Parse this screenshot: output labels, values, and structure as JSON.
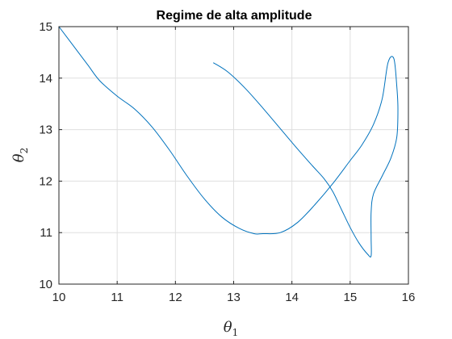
{
  "chart_data": {
    "type": "line",
    "title": "Regime de alta amplitude",
    "xlabel": {
      "base": "θ",
      "sub": "1"
    },
    "ylabel": {
      "base": "θ",
      "sub": "2"
    },
    "xlim": [
      10,
      16
    ],
    "ylim": [
      10,
      15
    ],
    "xticks": [
      10,
      11,
      12,
      13,
      14,
      15,
      16
    ],
    "yticks": [
      10,
      11,
      12,
      13,
      14,
      15
    ],
    "grid": true,
    "line_color": "#0072BD",
    "series": [
      {
        "x": [
          12.65,
          12.9,
          13.2,
          13.5,
          13.8,
          14.1,
          14.35,
          14.55,
          14.7,
          14.85,
          15.0,
          15.15,
          15.3,
          15.36,
          15.36,
          15.36,
          15.4,
          15.55,
          15.7,
          15.8,
          15.82,
          15.8,
          15.75,
          15.65,
          15.55,
          15.4,
          15.2,
          15.0,
          14.7,
          14.4,
          14.1,
          13.8,
          13.5,
          13.35,
          13.1,
          12.8,
          12.5,
          12.2,
          11.9,
          11.6,
          11.3,
          11.0,
          10.7,
          10.5,
          10.3,
          10.0
        ],
        "y": [
          14.3,
          14.12,
          13.8,
          13.42,
          13.02,
          12.62,
          12.3,
          12.05,
          11.8,
          11.45,
          11.1,
          10.8,
          10.58,
          10.55,
          10.9,
          11.4,
          11.75,
          12.1,
          12.45,
          12.85,
          13.4,
          13.85,
          14.38,
          14.3,
          13.6,
          13.1,
          12.7,
          12.4,
          11.95,
          11.55,
          11.2,
          11.0,
          10.98,
          10.98,
          11.08,
          11.3,
          11.65,
          12.1,
          12.6,
          13.05,
          13.4,
          13.65,
          13.95,
          14.25,
          14.55,
          15.0
        ]
      }
    ]
  }
}
